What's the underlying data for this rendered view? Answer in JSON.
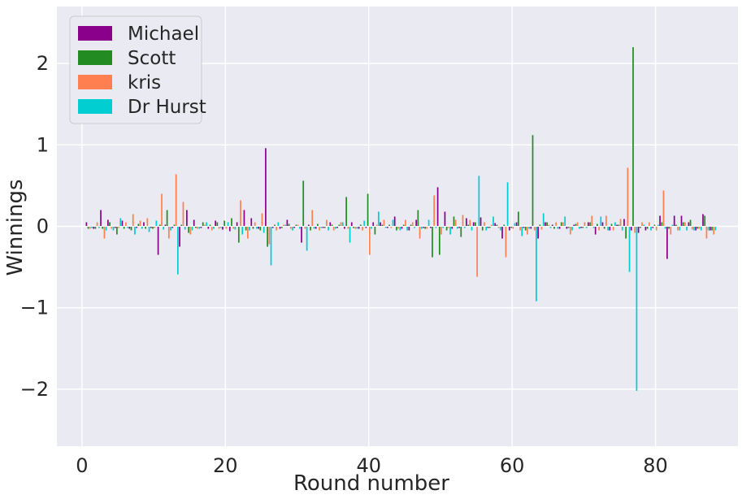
{
  "chart_data": {
    "type": "bar",
    "stacked": "diverging",
    "xlabel": "Round number",
    "ylabel": "Winnings",
    "xlim": [
      -3.5,
      91.5
    ],
    "ylim": [
      -2.7,
      2.7
    ],
    "xticks": [
      0,
      20,
      40,
      60,
      80
    ],
    "yticks": [
      -2,
      -1,
      0,
      1,
      2
    ],
    "xtick_labels": [
      "0",
      "20",
      "40",
      "60",
      "80"
    ],
    "ytick_labels": [
      "−2",
      "−1",
      "0",
      "1",
      "2"
    ],
    "grid": true,
    "legend_position": "top-left",
    "background": "#eaeaf2",
    "series": [
      {
        "name": "Michael",
        "color": "#8b008b",
        "values": [
          0.05,
          -0.03,
          0.2,
          0.08,
          -0.02,
          0.07,
          -0.03,
          -0.02,
          0.05,
          -0.02,
          -0.35,
          0.02,
          -0.02,
          -0.25,
          0.2,
          0.08,
          -0.02,
          -0.03,
          0.07,
          -0.04,
          -0.06,
          0.05,
          0.2,
          0.1,
          -0.03,
          0.96,
          -0.02,
          -0.03,
          0.08,
          -0.02,
          -0.2,
          0.02,
          -0.03,
          -0.02,
          0.05,
          -0.02,
          -0.03,
          0.05,
          -0.03,
          -0.02,
          0.05,
          0.05,
          -0.02,
          0.12,
          -0.03,
          -0.05,
          0.08,
          -0.02,
          -0.02,
          0.48,
          0.18,
          -0.03,
          -0.02,
          0.1,
          0.05,
          0.11,
          -0.02,
          0.04,
          -0.15,
          -0.05,
          0.05,
          -0.02,
          -0.03,
          -0.15,
          0.05,
          0.02,
          -0.03,
          -0.03,
          0.02,
          -0.02,
          0.05,
          -0.1,
          0.05,
          -0.05,
          0.02,
          0.09,
          -0.05,
          -0.08,
          -0.05,
          -0.02,
          0.13,
          -0.4,
          0.13,
          0.13,
          0.05,
          -0.05,
          0.15,
          -0.05
        ]
      },
      {
        "name": "Scott",
        "color": "#228b22",
        "values": [
          -0.03,
          -0.03,
          -0.03,
          0.05,
          -0.1,
          -0.03,
          -0.05,
          0.03,
          -0.03,
          -0.03,
          0.02,
          0.2,
          0.02,
          0.02,
          -0.08,
          -0.02,
          0.05,
          0.02,
          0.05,
          0.07,
          0.1,
          -0.2,
          -0.05,
          -0.03,
          -0.05,
          -0.25,
          0.02,
          -0.02,
          0.03,
          0.02,
          0.56,
          -0.05,
          0.03,
          -0.02,
          0.02,
          0.02,
          0.36,
          -0.02,
          0.02,
          0.4,
          -0.1,
          0.02,
          0.02,
          -0.05,
          0.02,
          0.02,
          0.2,
          -0.03,
          -0.38,
          -0.35,
          -0.05,
          0.12,
          -0.13,
          0.02,
          0.05,
          -0.05,
          -0.02,
          0.02,
          0.02,
          -0.02,
          0.18,
          -0.05,
          1.12,
          0.02,
          0.05,
          -0.03,
          0.05,
          -0.02,
          0.03,
          -0.02,
          0.05,
          0.03,
          -0.03,
          0.03,
          0.02,
          -0.15,
          2.2,
          -0.02,
          -0.03,
          0.02,
          0.05,
          -0.03,
          0.02,
          0.05,
          0.08,
          -0.03,
          0.13,
          -0.05
        ]
      },
      {
        "name": "kris",
        "color": "#ff7f50",
        "values": [
          -0.03,
          0.05,
          -0.15,
          -0.03,
          -0.02,
          0.05,
          0.15,
          0.07,
          0.1,
          -0.02,
          0.4,
          -0.15,
          0.64,
          0.3,
          -0.1,
          -0.03,
          0.02,
          -0.05,
          -0.03,
          -0.03,
          -0.03,
          0.32,
          -0.15,
          0.05,
          0.16,
          -0.22,
          -0.05,
          0.02,
          -0.03,
          0.02,
          -0.03,
          0.2,
          -0.05,
          0.08,
          -0.05,
          0.05,
          -0.03,
          -0.03,
          -0.05,
          -0.35,
          0.02,
          0.08,
          -0.02,
          -0.03,
          0.08,
          0.05,
          -0.15,
          -0.03,
          0.38,
          -0.1,
          -0.02,
          0.08,
          0.14,
          0.08,
          -0.62,
          0.05,
          0.02,
          -0.02,
          -0.38,
          -0.03,
          -0.05,
          -0.1,
          -0.05,
          -0.04,
          0.02,
          0.05,
          0.05,
          -0.1,
          0.05,
          0.05,
          0.13,
          -0.05,
          0.13,
          -0.05,
          0.09,
          0.72,
          -0.08,
          0.05,
          0.05,
          -0.05,
          0.44,
          -0.1,
          -0.05,
          0.05,
          -0.04,
          -0.03,
          -0.15,
          -0.1
        ]
      },
      {
        "name": "Dr Hurst",
        "color": "#00ced1",
        "values": [
          -0.02,
          -0.02,
          -0.05,
          -0.05,
          0.1,
          -0.02,
          -0.1,
          -0.03,
          -0.07,
          0.07,
          -0.04,
          -0.05,
          -0.59,
          -0.04,
          -0.05,
          -0.03,
          0.05,
          -0.03,
          -0.02,
          0.05,
          -0.04,
          -0.1,
          -0.05,
          -0.03,
          -0.08,
          -0.48,
          0.05,
          0.02,
          -0.05,
          -0.03,
          -0.3,
          -0.03,
          -0.02,
          -0.05,
          -0.03,
          0.05,
          -0.2,
          -0.03,
          0.07,
          -0.03,
          0.18,
          -0.02,
          0.08,
          -0.05,
          -0.05,
          -0.02,
          -0.03,
          0.08,
          -0.02,
          -0.02,
          -0.1,
          -0.03,
          -0.02,
          -0.05,
          0.62,
          -0.05,
          0.12,
          -0.05,
          0.54,
          0.04,
          -0.12,
          -0.03,
          -0.92,
          0.16,
          -0.02,
          -0.03,
          0.12,
          -0.05,
          -0.03,
          -0.02,
          -0.02,
          0.12,
          -0.05,
          0.05,
          -0.05,
          -0.56,
          -2.02,
          0.02,
          -0.05,
          0.02,
          -0.03,
          0.02,
          -0.05,
          -0.05,
          -0.05,
          -0.05,
          -0.05,
          -0.05
        ]
      }
    ]
  }
}
